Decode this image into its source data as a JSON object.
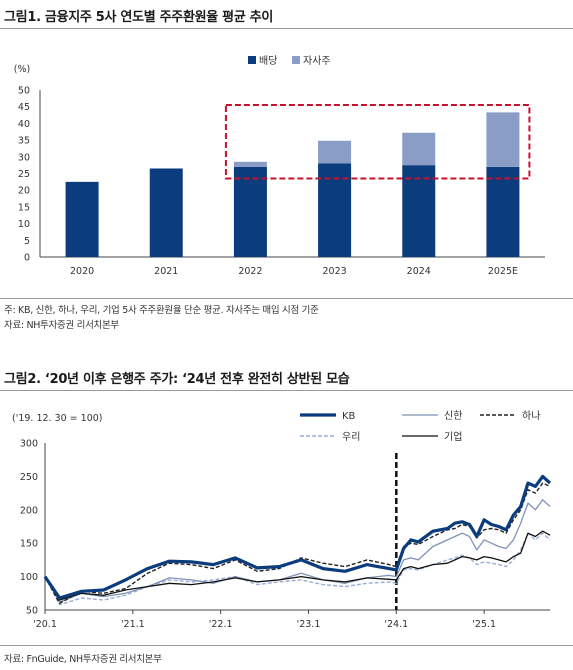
{
  "figure1": {
    "title": "그림1. 금융지주 5사 연도별 주주환원율 평균 추이",
    "notes": [
      "주: KB, 신한, 하나, 우리, 기업 5사 주주환원율 단순 평균. 자사주는 매입 시점 기준",
      "자료: NH투자증권 리서치본부"
    ]
  },
  "figure2": {
    "title": "그림2. ‘20년 이후 은행주 주가: ‘24년 전후 완전히 상반된 모습",
    "notes": [
      "자료: FnGuide, NH투자증권 리서치본부"
    ]
  },
  "chart_data": [
    {
      "type": "bar",
      "stacked": true,
      "ylabel": "(%)",
      "ylim": [
        0,
        50
      ],
      "yticks": [
        0,
        5,
        10,
        15,
        20,
        25,
        30,
        35,
        40,
        45,
        50
      ],
      "categories": [
        "2020",
        "2021",
        "2022",
        "2023",
        "2024",
        "2025E"
      ],
      "series": [
        {
          "name": "배당",
          "color": "#0b3d7e",
          "values": [
            22.5,
            26.5,
            27.0,
            28.0,
            27.5,
            27.0
          ]
        },
        {
          "name": "자사주",
          "color": "#8a9dc6",
          "values": [
            0,
            0,
            1.5,
            6.8,
            9.7,
            16.3
          ]
        }
      ],
      "legend": "top-right",
      "highlight_box": {
        "categories": [
          "2022",
          "2025E"
        ],
        "ylim": [
          23.5,
          45.5
        ],
        "color": "#c8102e"
      }
    },
    {
      "type": "line",
      "ylabel": "('19. 12. 30 = 100)",
      "ylim": [
        50,
        300
      ],
      "yticks": [
        50,
        100,
        150,
        200,
        250,
        300
      ],
      "xlim": [
        "2020-01",
        "2025-10"
      ],
      "xticks": [
        "'20.1",
        "'21.1",
        "'22.1",
        "'23.1",
        "'24.1",
        "'25.1"
      ],
      "vline": "2024-01",
      "legend": "top-right",
      "series": [
        {
          "name": "KB",
          "color": "#0b3d7e",
          "style": "thick",
          "x": [
            "2020-01",
            "2020-03",
            "2020-06",
            "2020-09",
            "2020-12",
            "2021-03",
            "2021-06",
            "2021-09",
            "2021-12",
            "2022-03",
            "2022-06",
            "2022-09",
            "2022-12",
            "2023-03",
            "2023-06",
            "2023-09",
            "2023-12",
            "2024-01",
            "2024-02",
            "2024-03",
            "2024-04",
            "2024-06",
            "2024-08",
            "2024-09",
            "2024-10",
            "2024-11",
            "2024-12",
            "2025-01",
            "2025-02",
            "2025-03",
            "2025-04",
            "2025-05",
            "2025-06",
            "2025-07",
            "2025-08",
            "2025-09",
            "2025-10"
          ],
          "y": [
            100,
            68,
            78,
            80,
            95,
            112,
            123,
            122,
            118,
            128,
            113,
            115,
            125,
            112,
            108,
            118,
            112,
            110,
            142,
            155,
            152,
            168,
            172,
            180,
            182,
            178,
            160,
            185,
            178,
            175,
            170,
            192,
            205,
            240,
            235,
            250,
            240
          ]
        },
        {
          "name": "신한",
          "color": "#7f92b8",
          "style": "thin",
          "x": [
            "2020-01",
            "2020-03",
            "2020-06",
            "2020-09",
            "2020-12",
            "2021-03",
            "2021-06",
            "2021-09",
            "2021-12",
            "2022-03",
            "2022-06",
            "2022-09",
            "2022-12",
            "2023-03",
            "2023-06",
            "2023-09",
            "2023-12",
            "2024-01",
            "2024-02",
            "2024-03",
            "2024-04",
            "2024-06",
            "2024-08",
            "2024-09",
            "2024-10",
            "2024-11",
            "2024-12",
            "2025-01",
            "2025-02",
            "2025-03",
            "2025-04",
            "2025-05",
            "2025-06",
            "2025-07",
            "2025-08",
            "2025-09",
            "2025-10"
          ],
          "y": [
            100,
            62,
            75,
            70,
            75,
            85,
            98,
            95,
            90,
            100,
            92,
            95,
            105,
            95,
            90,
            98,
            102,
            100,
            125,
            128,
            125,
            145,
            155,
            160,
            165,
            160,
            140,
            155,
            150,
            145,
            142,
            155,
            180,
            210,
            200,
            215,
            205
          ]
        },
        {
          "name": "하나",
          "color": "#222222",
          "style": "dashed",
          "x": [
            "2020-01",
            "2020-03",
            "2020-06",
            "2020-09",
            "2020-12",
            "2021-03",
            "2021-06",
            "2021-09",
            "2021-12",
            "2022-03",
            "2022-06",
            "2022-09",
            "2022-12",
            "2023-03",
            "2023-06",
            "2023-09",
            "2023-12",
            "2024-01",
            "2024-02",
            "2024-03",
            "2024-04",
            "2024-06",
            "2024-08",
            "2024-09",
            "2024-10",
            "2024-11",
            "2024-12",
            "2025-01",
            "2025-02",
            "2025-03",
            "2025-04",
            "2025-05",
            "2025-06",
            "2025-07",
            "2025-08",
            "2025-09",
            "2025-10"
          ],
          "y": [
            100,
            60,
            78,
            75,
            82,
            105,
            120,
            118,
            112,
            125,
            108,
            112,
            128,
            120,
            115,
            125,
            118,
            115,
            145,
            150,
            148,
            160,
            170,
            172,
            178,
            175,
            158,
            170,
            172,
            170,
            165,
            185,
            200,
            230,
            225,
            240,
            235
          ]
        },
        {
          "name": "우리",
          "color": "#9aaed4",
          "style": "dashed",
          "x": [
            "2020-01",
            "2020-03",
            "2020-06",
            "2020-09",
            "2020-12",
            "2021-03",
            "2021-06",
            "2021-09",
            "2021-12",
            "2022-03",
            "2022-06",
            "2022-09",
            "2022-12",
            "2023-03",
            "2023-06",
            "2023-09",
            "2023-12",
            "2024-01",
            "2024-02",
            "2024-03",
            "2024-04",
            "2024-06",
            "2024-08",
            "2024-09",
            "2024-10",
            "2024-11",
            "2024-12",
            "2025-01",
            "2025-02",
            "2025-03",
            "2025-04",
            "2025-05",
            "2025-06",
            "2025-07",
            "2025-08",
            "2025-09",
            "2025-10"
          ],
          "y": [
            100,
            58,
            68,
            65,
            72,
            85,
            95,
            92,
            95,
            100,
            88,
            92,
            95,
            88,
            85,
            90,
            92,
            90,
            110,
            112,
            110,
            118,
            125,
            128,
            132,
            128,
            118,
            122,
            120,
            118,
            115,
            125,
            140,
            165,
            155,
            165,
            155
          ]
        },
        {
          "name": "기업",
          "color": "#111111",
          "style": "thin",
          "x": [
            "2020-01",
            "2020-03",
            "2020-06",
            "2020-09",
            "2020-12",
            "2021-03",
            "2021-06",
            "2021-09",
            "2021-12",
            "2022-03",
            "2022-06",
            "2022-09",
            "2022-12",
            "2023-03",
            "2023-06",
            "2023-09",
            "2023-12",
            "2024-01",
            "2024-02",
            "2024-03",
            "2024-04",
            "2024-06",
            "2024-08",
            "2024-09",
            "2024-10",
            "2024-11",
            "2024-12",
            "2025-01",
            "2025-02",
            "2025-03",
            "2025-04",
            "2025-05",
            "2025-06",
            "2025-07",
            "2025-08",
            "2025-09",
            "2025-10"
          ],
          "y": [
            100,
            65,
            75,
            72,
            80,
            85,
            90,
            88,
            92,
            98,
            92,
            95,
            100,
            95,
            92,
            98,
            96,
            95,
            112,
            115,
            112,
            118,
            120,
            125,
            130,
            128,
            125,
            130,
            128,
            125,
            122,
            130,
            135,
            165,
            160,
            168,
            162
          ]
        }
      ]
    }
  ]
}
